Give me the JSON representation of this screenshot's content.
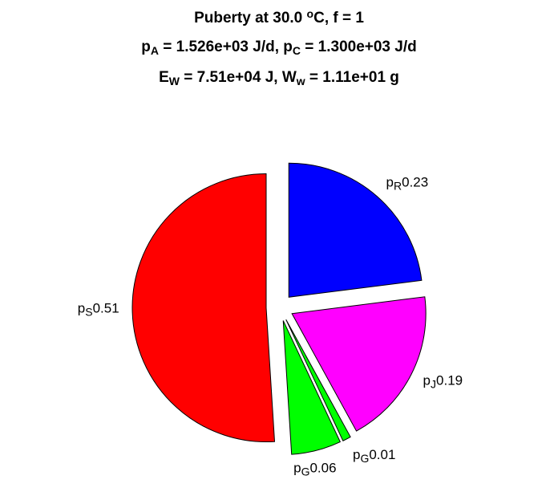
{
  "chart_data": {
    "type": "pie",
    "title": [
      [
        {
          "text": "Puberty at 30.0 "
        },
        {
          "text": "o",
          "script": "super"
        },
        {
          "text": "C, f = 1"
        }
      ],
      [
        {
          "text": "p"
        },
        {
          "text": "A",
          "script": "sub"
        },
        {
          "text": " = 1.526e+03 J/d,  p"
        },
        {
          "text": "C",
          "script": "sub"
        },
        {
          "text": " = 1.300e+03 J/d"
        }
      ],
      [
        {
          "text": "E"
        },
        {
          "text": "W",
          "script": "sub"
        },
        {
          "text": " = 7.51e+04 J, W"
        },
        {
          "text": "w",
          "script": "sub"
        },
        {
          "text": " = 1.11e+01 g"
        }
      ]
    ],
    "categories": [
      {
        "text": "p",
        "sub": "R"
      },
      {
        "text": "p",
        "sub": "J"
      },
      {
        "text": "p",
        "sub": "G"
      },
      {
        "text": "p",
        "sub": "G"
      },
      {
        "text": "p",
        "sub": "S"
      }
    ],
    "values": [
      0.23,
      0.19,
      0.01,
      0.06,
      0.51
    ],
    "colors": [
      "#0000ff",
      "#ff00ff",
      "#00ff00",
      "#00ff00",
      "#ff0000"
    ],
    "explode": [
      true,
      true,
      true,
      true,
      true
    ],
    "start_angle": 90,
    "direction": "clockwise"
  }
}
